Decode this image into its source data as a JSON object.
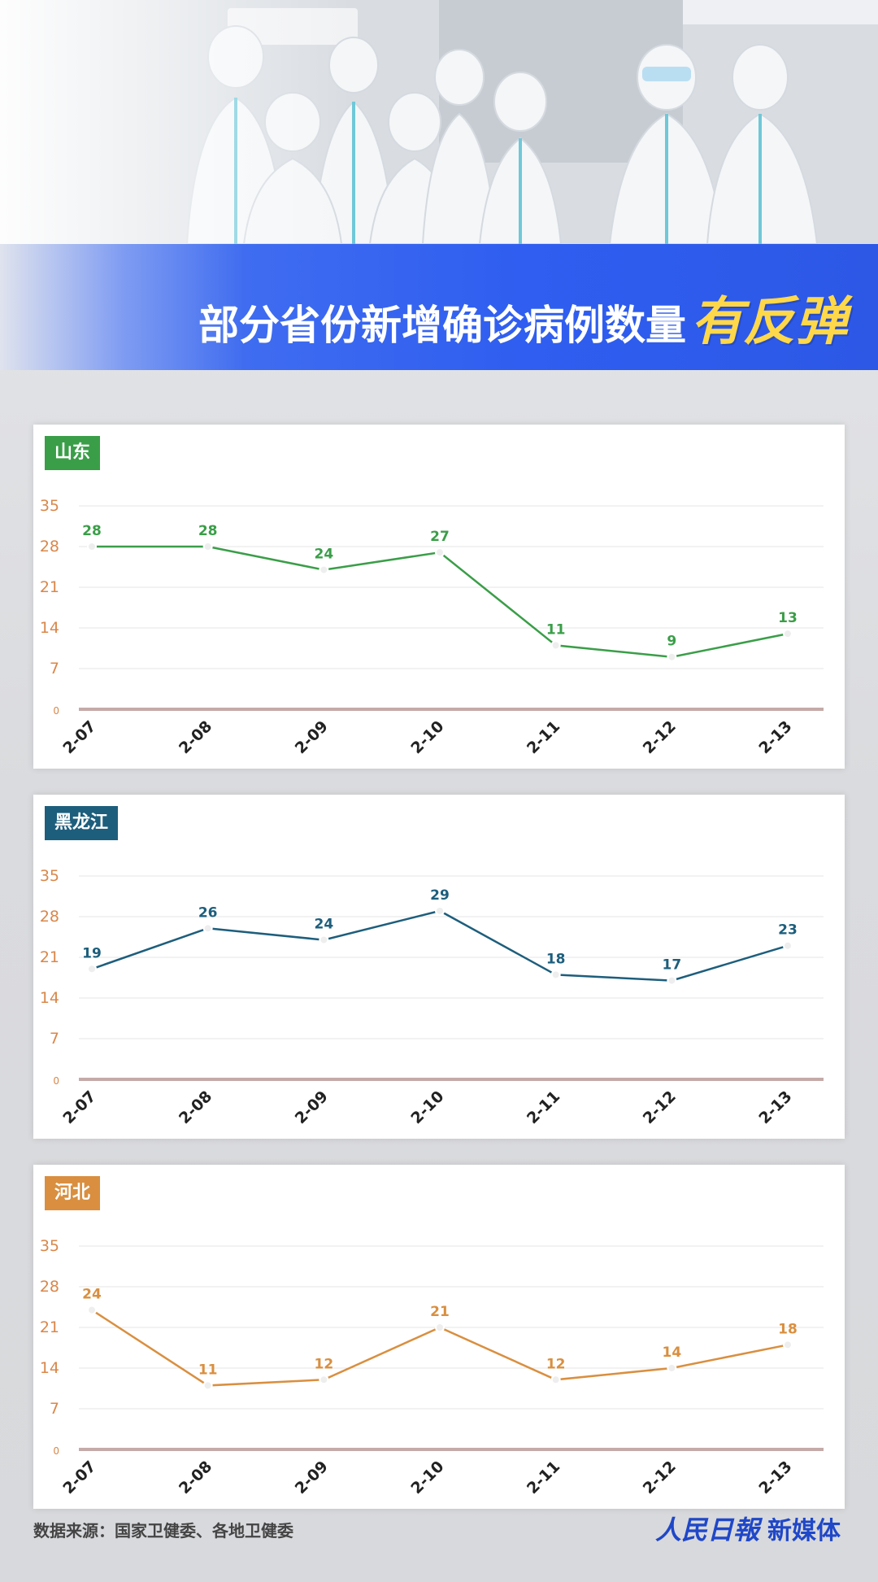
{
  "header": {
    "title_normal": "部分省份新增确诊病例数量",
    "title_emphasis": "有反弹"
  },
  "footer": {
    "source": "数据来源：国家卫健委、各地卫健委",
    "brand_paper": "人民日報",
    "brand_media": "新媒体"
  },
  "chart_data": [
    {
      "type": "line",
      "tag": "山东",
      "color": "#3a9e48",
      "x": [
        "2-07",
        "2-08",
        "2-09",
        "2-10",
        "2-11",
        "2-12",
        "2-13"
      ],
      "y_ticks": [
        0,
        7,
        14,
        21,
        28,
        35
      ],
      "ylim": [
        0,
        35
      ],
      "series": [
        {
          "values": [
            28,
            28,
            24,
            27,
            11,
            9,
            13
          ]
        }
      ]
    },
    {
      "type": "line",
      "tag": "黑龙江",
      "color": "#1d5e7c",
      "x": [
        "2-07",
        "2-08",
        "2-09",
        "2-10",
        "2-11",
        "2-12",
        "2-13"
      ],
      "y_ticks": [
        0,
        7,
        14,
        21,
        28,
        35
      ],
      "ylim": [
        0,
        35
      ],
      "series": [
        {
          "values": [
            19,
            26,
            24,
            29,
            18,
            17,
            23
          ]
        }
      ]
    },
    {
      "type": "line",
      "tag": "河北",
      "color": "#d98f3f",
      "x": [
        "2-07",
        "2-08",
        "2-09",
        "2-10",
        "2-11",
        "2-12",
        "2-13"
      ],
      "y_ticks": [
        0,
        7,
        14,
        21,
        28,
        35
      ],
      "ylim": [
        0,
        35
      ],
      "series": [
        {
          "values": [
            24,
            11,
            12,
            21,
            12,
            14,
            18
          ]
        }
      ]
    }
  ],
  "style": {
    "tick_color": "#d9874a",
    "axis_color": "#c4aaa8",
    "grid_color": "#e4e4e4",
    "banner_color": "#2f5ef0",
    "emphasis_color": "#ffd84a"
  }
}
